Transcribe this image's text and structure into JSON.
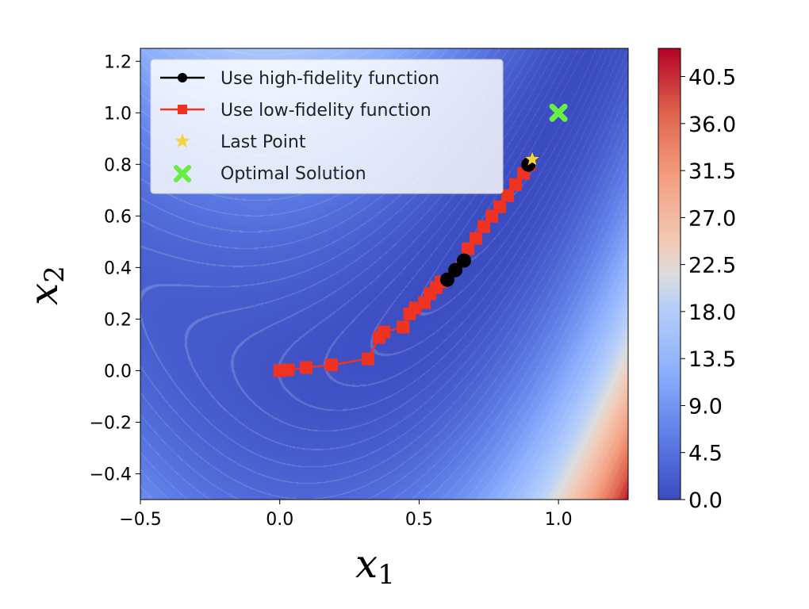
{
  "chart_data": {
    "type": "heatmap",
    "title": "",
    "xlabel": "x",
    "xlabel_sub": "1",
    "ylabel": "x",
    "ylabel_sub": "2",
    "xlim": [
      -0.5,
      1.25
    ],
    "ylim": [
      -0.5,
      1.25
    ],
    "xticks": [
      "−0.5",
      "0.0",
      "0.5",
      "1.0"
    ],
    "xtick_values": [
      -0.5,
      0.0,
      0.5,
      1.0
    ],
    "yticks": [
      "−0.4",
      "−0.2",
      "0.0",
      "0.2",
      "0.4",
      "0.6",
      "0.8",
      "1.0",
      "1.2"
    ],
    "ytick_values": [
      -0.4,
      -0.2,
      0.0,
      0.2,
      0.4,
      0.6,
      0.8,
      1.0,
      1.2
    ],
    "grid": false,
    "colormap": "coolwarm",
    "colorbar": {
      "range": [
        0,
        43.2
      ],
      "ticks": [
        "0.0",
        "4.5",
        "9.0",
        "13.5",
        "18.0",
        "22.5",
        "27.0",
        "31.5",
        "36.0",
        "40.5"
      ],
      "tick_values": [
        0,
        4.5,
        9,
        13.5,
        18,
        22.5,
        27,
        31.5,
        36,
        40.5
      ]
    },
    "legend_position": "upper-left",
    "series": [
      {
        "name": "Use high-fidelity function",
        "color": "#000000",
        "marker": "circle",
        "x": [
          0.601,
          0.63,
          0.661,
          0.892
        ],
        "y": [
          0.353,
          0.39,
          0.427,
          0.799
        ]
      },
      {
        "name": "Use low-fidelity function",
        "color": "#ee3322",
        "marker": "square",
        "x": [
          0.0,
          0.03,
          0.095,
          0.186,
          0.317,
          0.357,
          0.374,
          0.443,
          0.466,
          0.486,
          0.519,
          0.539,
          0.561,
          0.578,
          0.675,
          0.704,
          0.732,
          0.761,
          0.789,
          0.818,
          0.846,
          0.875,
          0.895
        ],
        "y": [
          0.0,
          0.003,
          0.012,
          0.022,
          0.046,
          0.129,
          0.15,
          0.169,
          0.221,
          0.243,
          0.264,
          0.298,
          0.322,
          0.344,
          0.473,
          0.513,
          0.559,
          0.599,
          0.636,
          0.679,
          0.722,
          0.765,
          0.799
        ]
      },
      {
        "name": "Last Point",
        "color": "#f5d442",
        "marker": "star",
        "x": [
          0.906
        ],
        "y": [
          0.82
        ]
      },
      {
        "name": "Optimal Solution",
        "color": "#66ee44",
        "marker": "x",
        "x": [
          1.0
        ],
        "y": [
          1.0
        ]
      }
    ]
  }
}
